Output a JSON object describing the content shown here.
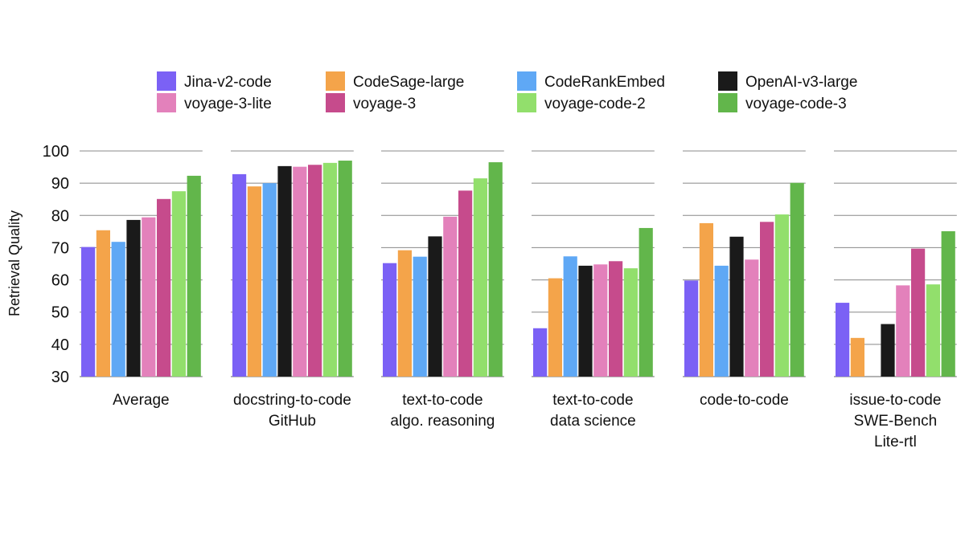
{
  "chart_data": {
    "type": "bar",
    "ylabel": "Retrieval Quality",
    "ylim": [
      30,
      100
    ],
    "yticks": [
      30,
      40,
      50,
      60,
      70,
      80,
      90,
      100
    ],
    "grid": true,
    "legend_position": "top",
    "categories": [
      [
        "Average"
      ],
      [
        "docstring-to-code",
        "GitHub"
      ],
      [
        "text-to-code",
        "algo. reasoning"
      ],
      [
        "text-to-code",
        "data science"
      ],
      [
        "code-to-code"
      ],
      [
        "issue-to-code",
        "SWE-Bench",
        "Lite-rtl"
      ]
    ],
    "series": [
      {
        "name": "Jina-v2-code",
        "color": "#7b61f5",
        "values": [
          70.2,
          92.8,
          65.2,
          45.0,
          59.8,
          52.9
        ]
      },
      {
        "name": "CodeSage-large",
        "color": "#f4a44a",
        "values": [
          75.4,
          89.0,
          69.2,
          60.5,
          77.6,
          42.0
        ]
      },
      {
        "name": "CodeRankEmbed",
        "color": "#5fa8f5",
        "values": [
          71.8,
          90.0,
          67.2,
          67.3,
          64.4,
          30.0
        ]
      },
      {
        "name": "OpenAI-v3-large",
        "color": "#1a1a1a",
        "values": [
          78.6,
          95.3,
          73.5,
          64.4,
          73.4,
          46.3
        ]
      },
      {
        "name": "voyage-3-lite",
        "color": "#e381bb",
        "values": [
          79.4,
          95.1,
          79.6,
          64.8,
          66.3,
          58.3
        ]
      },
      {
        "name": "voyage-3",
        "color": "#c64b8c",
        "values": [
          85.1,
          95.7,
          87.7,
          65.8,
          78.0,
          69.7
        ]
      },
      {
        "name": "voyage-code-2",
        "color": "#92df6c",
        "values": [
          87.5,
          96.3,
          91.5,
          63.6,
          80.3,
          58.6
        ]
      },
      {
        "name": "voyage-code-3",
        "color": "#62b64b",
        "values": [
          92.3,
          97.0,
          96.5,
          76.1,
          90.1,
          75.1
        ]
      }
    ]
  }
}
